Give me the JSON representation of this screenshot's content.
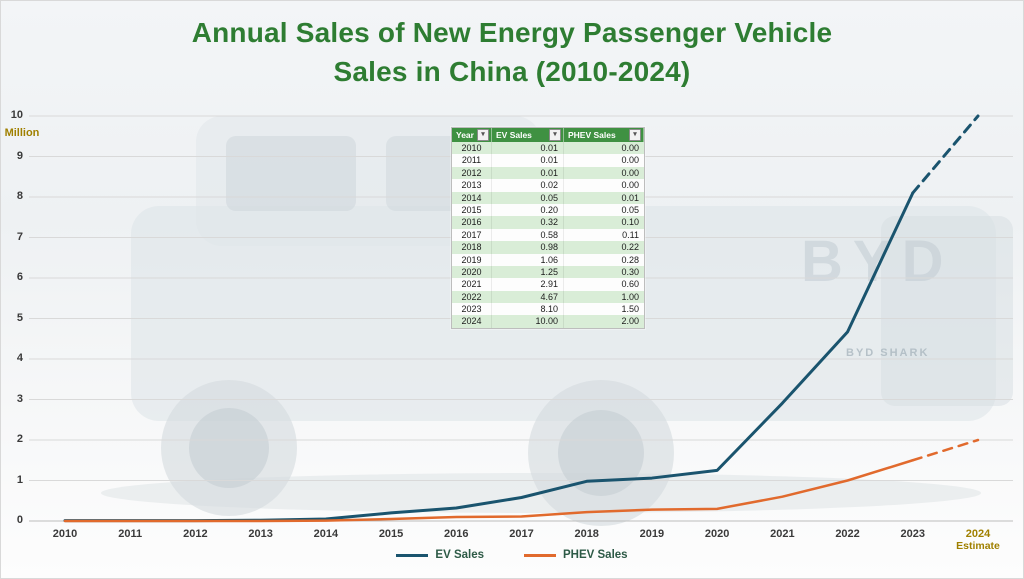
{
  "title": {
    "line1": "Annual Sales of New Energy Passenger Vehicle",
    "line2": "Sales in China (2010-2024)"
  },
  "colors": {
    "title_green": "#2e7d32",
    "ev_line": "#1a546e",
    "phev_line": "#e16a2d",
    "gold_accent": "#a08000",
    "table_header_green": "#3f9142",
    "table_band_green": "#d9edd7",
    "gridline": "#d9d9d9"
  },
  "y_axis": {
    "unit_label": "Million",
    "ticks": [
      0,
      1,
      2,
      3,
      4,
      5,
      6,
      7,
      8,
      9,
      10
    ]
  },
  "x_axis": {
    "labels": [
      "2010",
      "2011",
      "2012",
      "2013",
      "2014",
      "2015",
      "2016",
      "2017",
      "2018",
      "2019",
      "2020",
      "2021",
      "2022",
      "2023",
      "2024"
    ],
    "estimate_label": "Estimate"
  },
  "legend": {
    "items": [
      {
        "label": "EV Sales"
      },
      {
        "label": "PHEV Sales"
      }
    ]
  },
  "table": {
    "columns": [
      "Year",
      "EV Sales",
      "PHEV Sales"
    ],
    "rows": [
      [
        "2010",
        "0.01",
        "0.00"
      ],
      [
        "2011",
        "0.01",
        "0.00"
      ],
      [
        "2012",
        "0.01",
        "0.00"
      ],
      [
        "2013",
        "0.02",
        "0.00"
      ],
      [
        "2014",
        "0.05",
        "0.01"
      ],
      [
        "2015",
        "0.20",
        "0.05"
      ],
      [
        "2016",
        "0.32",
        "0.10"
      ],
      [
        "2017",
        "0.58",
        "0.11"
      ],
      [
        "2018",
        "0.98",
        "0.22"
      ],
      [
        "2019",
        "1.06",
        "0.28"
      ],
      [
        "2020",
        "1.25",
        "0.30"
      ],
      [
        "2021",
        "2.91",
        "0.60"
      ],
      [
        "2022",
        "4.67",
        "1.00"
      ],
      [
        "2023",
        "8.10",
        "1.50"
      ],
      [
        "2024",
        "10.00",
        "2.00"
      ]
    ]
  },
  "background": {
    "watermark_text": "BYD",
    "badge_text": "BYD SHARK"
  },
  "chart_data": {
    "type": "line",
    "title": "Annual Sales of New Energy Passenger Vehicle Sales in China (2010-2024)",
    "xlabel": "",
    "ylabel": "Million",
    "ylim": [
      0,
      10
    ],
    "yticks": [
      0,
      1,
      2,
      3,
      4,
      5,
      6,
      7,
      8,
      9,
      10
    ],
    "grid": true,
    "legend_position": "bottom",
    "x": [
      2010,
      2011,
      2012,
      2013,
      2014,
      2015,
      2016,
      2017,
      2018,
      2019,
      2020,
      2021,
      2022,
      2023,
      2024
    ],
    "series": [
      {
        "name": "EV Sales",
        "color": "#1a546e",
        "values": [
          0.01,
          0.01,
          0.01,
          0.02,
          0.05,
          0.2,
          0.32,
          0.58,
          0.98,
          1.06,
          1.25,
          2.91,
          4.67,
          8.1,
          10.0
        ],
        "estimate_from_index": 13
      },
      {
        "name": "PHEV Sales",
        "color": "#e16a2d",
        "values": [
          0.0,
          0.0,
          0.0,
          0.0,
          0.01,
          0.05,
          0.1,
          0.11,
          0.22,
          0.28,
          0.3,
          0.6,
          1.0,
          1.5,
          2.0
        ],
        "estimate_from_index": 13
      }
    ]
  }
}
